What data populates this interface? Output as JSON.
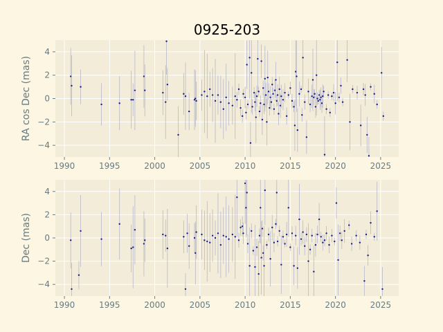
{
  "title": "0925-203",
  "colors": {
    "figure_bg": "#fdf6e3",
    "axes_bg": "#f2ecd9",
    "grid": "#ffffff",
    "point": "#1a1a8c",
    "errorbar": "#b8b8c8",
    "tick_text": "#657b83"
  },
  "chart_data": [
    {
      "type": "scatter",
      "title": "0925-203",
      "xlabel": "",
      "ylabel": "RA cos Dec (mas)",
      "xlim": [
        1989,
        2027
      ],
      "ylim": [
        -5,
        5
      ],
      "xticks": [
        1990,
        1995,
        2000,
        2005,
        2010,
        2015,
        2020,
        2025
      ],
      "yticks": [
        -4,
        -2,
        0,
        2,
        4
      ],
      "grid": true,
      "series": [
        {
          "marker": "dot",
          "errorbars": true,
          "x": [
            1990.7,
            1990.8,
            1991.8,
            1994.1,
            1996.1,
            1997.4,
            1997.6,
            1997.8,
            1998.8,
            1998.9,
            2000.9,
            2001.2,
            2001.3,
            2001.4,
            2002.6,
            2003.2,
            2003.4,
            2003.8,
            2004.4,
            2004.5,
            2004.6,
            2005.2,
            2005.5,
            2005.8,
            2006.1,
            2006.4,
            2006.7,
            2007.0,
            2007.3,
            2007.6,
            2007.9,
            2008.2,
            2008.6,
            2008.9,
            2009.1,
            2009.3,
            2009.5,
            2009.7,
            2009.8,
            2010.0,
            2010.1,
            2010.2,
            2010.3,
            2010.5,
            2010.6,
            2010.7,
            2010.8,
            2011.0,
            2011.1,
            2011.2,
            2011.3,
            2011.4,
            2011.5,
            2011.6,
            2011.7,
            2011.8,
            2011.9,
            2012.0,
            2012.1,
            2012.2,
            2012.3,
            2012.4,
            2012.5,
            2012.6,
            2012.7,
            2012.8,
            2012.9,
            2013.0,
            2013.1,
            2013.2,
            2013.3,
            2013.4,
            2013.5,
            2013.6,
            2013.7,
            2013.8,
            2013.9,
            2014.0,
            2014.2,
            2014.4,
            2014.6,
            2014.8,
            2015.0,
            2015.2,
            2015.4,
            2015.5,
            2015.6,
            2015.7,
            2015.8,
            2016.0,
            2016.2,
            2016.3,
            2016.4,
            2016.6,
            2016.8,
            2017.0,
            2017.2,
            2017.4,
            2017.5,
            2017.6,
            2017.7,
            2017.8,
            2017.9,
            2018.0,
            2018.1,
            2018.2,
            2018.3,
            2018.4,
            2018.5,
            2018.6,
            2018.7,
            2018.8,
            2019.0,
            2019.2,
            2019.4,
            2019.6,
            2019.8,
            2020.0,
            2020.2,
            2020.4,
            2020.6,
            2020.8,
            2021.3,
            2021.6,
            2021.9,
            2022.4,
            2022.8,
            2023.1,
            2023.3,
            2023.5,
            2023.7,
            2023.9,
            2024.3,
            2024.6,
            2025.1,
            2025.3
          ],
          "y": [
            1.9,
            1.1,
            1.0,
            -0.5,
            -0.4,
            -0.1,
            -0.1,
            0.7,
            1.9,
            0.7,
            0.5,
            -0.3,
            4.9,
            1.2,
            -3.1,
            0.4,
            0.2,
            -1.1,
            -0.1,
            0.0,
            -0.2,
            0.3,
            0.6,
            0.2,
            0.8,
            0.3,
            -0.2,
            0.3,
            -0.3,
            -0.9,
            0.1,
            -0.4,
            -0.6,
            0.2,
            -0.1,
            0.8,
            -0.8,
            -1.5,
            0.4,
            0.1,
            -1.2,
            2.9,
            -0.5,
            3.5,
            -3.8,
            2.2,
            -0.7,
            0.5,
            -0.3,
            -1.6,
            0.2,
            3.4,
            0.6,
            -1.1,
            -0.4,
            3.2,
            -1.8,
            0.9,
            -0.5,
            1.7,
            0.3,
            -2.0,
            1.8,
            0.6,
            -0.8,
            0.1,
            -0.3,
            1.2,
            0.4,
            -0.9,
            0.7,
            1.6,
            -0.2,
            0.3,
            -1.3,
            0.8,
            -0.6,
            0.2,
            -0.1,
            0.5,
            -1.5,
            0.3,
            0.9,
            -0.2,
            -0.7,
            -2.3,
            2.3,
            1.9,
            -2.7,
            0.4,
            0.8,
            -1.4,
            3.5,
            -0.3,
            -3.3,
            0.6,
            -0.5,
            0.2,
            1.6,
            0.1,
            0.4,
            -0.7,
            2.0,
            0.0,
            -0.2,
            0.3,
            -0.1,
            0.1,
            -0.4,
            0.2,
            0.6,
            -4.8,
            -0.9,
            0.3,
            -1.2,
            0.2,
            0.5,
            -0.4,
            3.1,
            0.1,
            1.1,
            -0.3,
            3.3,
            -2.0,
            0.8,
            0.5,
            -2.3,
            0.8,
            0.3,
            -3.1,
            -4.9,
            1.0,
            0.4,
            -0.5,
            2.2,
            -1.5
          ]
        }
      ]
    },
    {
      "type": "scatter",
      "xlabel": "",
      "ylabel": "Dec (mas)",
      "xlim": [
        1989,
        2027
      ],
      "ylim": [
        -5,
        5
      ],
      "xticks": [
        1990,
        1995,
        2000,
        2005,
        2010,
        2015,
        2020,
        2025
      ],
      "yticks": [
        -4,
        -2,
        0,
        2,
        4
      ],
      "grid": true,
      "series": [
        {
          "marker": "dot",
          "errorbars": true,
          "x": [
            1990.7,
            1990.8,
            1991.6,
            1991.8,
            1994.1,
            1996.1,
            1997.4,
            1997.6,
            1997.8,
            1998.8,
            1998.9,
            2000.9,
            2001.2,
            2001.4,
            2003.2,
            2003.4,
            2003.6,
            2003.8,
            2004.4,
            2004.5,
            2004.6,
            2005.2,
            2005.5,
            2005.8,
            2006.1,
            2006.4,
            2006.7,
            2007.0,
            2007.3,
            2007.6,
            2007.9,
            2008.2,
            2008.6,
            2008.9,
            2009.1,
            2009.3,
            2009.5,
            2009.7,
            2009.8,
            2010.0,
            2010.1,
            2010.2,
            2010.3,
            2010.5,
            2010.7,
            2010.9,
            2011.1,
            2011.3,
            2011.5,
            2011.6,
            2011.7,
            2011.8,
            2011.9,
            2012.0,
            2012.1,
            2012.2,
            2012.4,
            2012.6,
            2012.8,
            2013.0,
            2013.2,
            2013.4,
            2013.5,
            2013.6,
            2013.8,
            2014.0,
            2014.2,
            2014.4,
            2014.6,
            2014.8,
            2015.0,
            2015.2,
            2015.4,
            2015.6,
            2015.8,
            2016.0,
            2016.2,
            2016.4,
            2016.6,
            2016.8,
            2017.0,
            2017.2,
            2017.4,
            2017.6,
            2017.8,
            2018.0,
            2018.2,
            2018.4,
            2018.6,
            2018.8,
            2019.0,
            2019.3,
            2019.6,
            2019.9,
            2020.1,
            2020.3,
            2020.5,
            2020.7,
            2021.0,
            2021.5,
            2021.8,
            2022.3,
            2022.7,
            2023.2,
            2023.4,
            2023.6,
            2023.9,
            2024.3,
            2024.6,
            2025.2
          ],
          "y": [
            -0.2,
            -4.4,
            -3.2,
            0.6,
            -0.1,
            1.2,
            -0.9,
            -0.8,
            0.7,
            -0.5,
            -0.2,
            0.3,
            0.2,
            -0.9,
            0.1,
            -4.4,
            0.4,
            -0.7,
            0.0,
            -1.3,
            0.5,
            0.3,
            -0.2,
            -0.3,
            -0.4,
            0.2,
            0.0,
            0.4,
            -0.6,
            0.2,
            0.1,
            -0.1,
            0.3,
            0.1,
            3.5,
            -0.2,
            0.9,
            1.0,
            0.4,
            4.7,
            2.6,
            3.9,
            -0.5,
            -2.4,
            0.6,
            -1.1,
            -2.5,
            -0.8,
            -3.1,
            0.2,
            2.6,
            -1.7,
            0.8,
            -1.3,
            -2.4,
            4.1,
            -0.6,
            0.3,
            -1.8,
            0.9,
            -0.4,
            1.2,
            3.9,
            -0.3,
            0.6,
            -2.3,
            0.1,
            -0.5,
            0.3,
            2.6,
            -0.8,
            0.4,
            -2.4,
            0.2,
            -2.6,
            1.6,
            -0.1,
            0.5,
            -0.7,
            0.3,
            -2.0,
            -1.0,
            0.2,
            -2.9,
            -0.6,
            0.3,
            1.6,
            0.1,
            -0.4,
            -0.2,
            0.4,
            -0.6,
            0.2,
            -0.3,
            3.0,
            -1.9,
            0.4,
            -0.2,
            0.6,
            1.1,
            -0.5,
            0.2,
            -0.4,
            -3.7,
            0.3,
            -1.5,
            1.3,
            0.1,
            2.3,
            -4.4
          ]
        }
      ]
    }
  ]
}
